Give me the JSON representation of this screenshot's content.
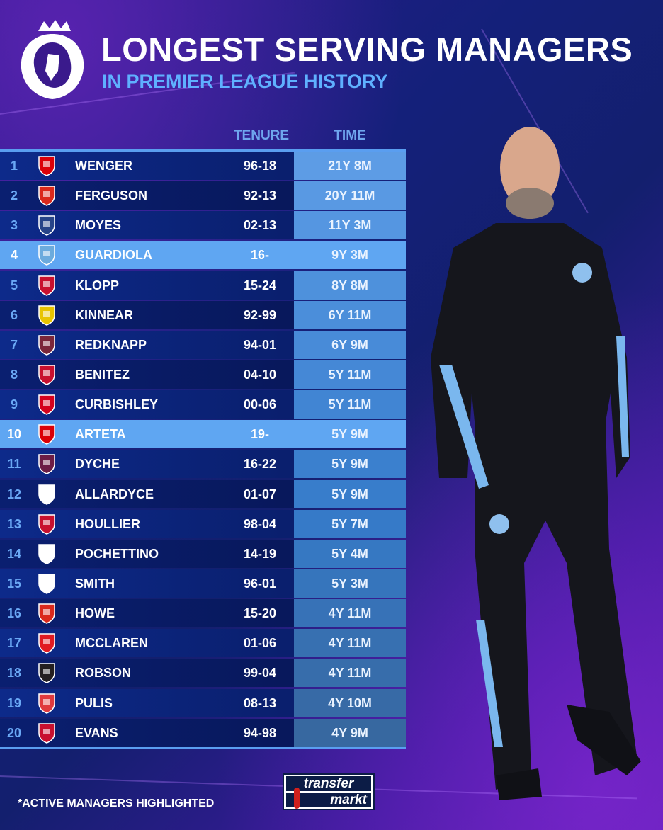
{
  "header": {
    "title": "LONGEST SERVING MANAGERS",
    "subtitle": "IN PREMIER LEAGUE HISTORY"
  },
  "columns": {
    "tenure": "TENURE",
    "time": "TIME"
  },
  "colors": {
    "highlight": "#5fa6f2",
    "row_dark": "#0d2a8a",
    "time_cell": "#5299e6",
    "subtitle": "#5fb0ff"
  },
  "rows": [
    {
      "rank": "1",
      "crest": "arsenal-crest",
      "name": "WENGER",
      "tenure": "96-18",
      "time": "21Y 8M",
      "active": false
    },
    {
      "rank": "2",
      "crest": "man-united-crest",
      "name": "FERGUSON",
      "tenure": "92-13",
      "time": "20Y 11M",
      "active": false
    },
    {
      "rank": "3",
      "crest": "everton-crest",
      "name": "MOYES",
      "tenure": "02-13",
      "time": "11Y 3M",
      "active": false
    },
    {
      "rank": "4",
      "crest": "man-city-crest",
      "name": "GUARDIOLA",
      "tenure": "16-",
      "time": "9Y 3M",
      "active": true
    },
    {
      "rank": "5",
      "crest": "liverpool-crest",
      "name": "KLOPP",
      "tenure": "15-24",
      "time": "8Y 8M",
      "active": false
    },
    {
      "rank": "6",
      "crest": "wimbledon-crest",
      "name": "KINNEAR",
      "tenure": "92-99",
      "time": "6Y 11M",
      "active": false
    },
    {
      "rank": "7",
      "crest": "west-ham-crest",
      "name": "REDKNAPP",
      "tenure": "94-01",
      "time": "6Y 9M",
      "active": false
    },
    {
      "rank": "8",
      "crest": "liverpool-crest",
      "name": "BENITEZ",
      "tenure": "04-10",
      "time": "5Y 11M",
      "active": false
    },
    {
      "rank": "9",
      "crest": "charlton-crest",
      "name": "CURBISHLEY",
      "tenure": "00-06",
      "time": "5Y 11M",
      "active": false
    },
    {
      "rank": "10",
      "crest": "arsenal-crest",
      "name": "ARTETA",
      "tenure": "19-",
      "time": "5Y 9M",
      "active": true
    },
    {
      "rank": "11",
      "crest": "burnley-crest",
      "name": "DYCHE",
      "tenure": "16-22",
      "time": "5Y 9M",
      "active": false
    },
    {
      "rank": "12",
      "crest": "bolton-crest",
      "name": "ALLARDYCE",
      "tenure": "01-07",
      "time": "5Y 9M",
      "active": false
    },
    {
      "rank": "13",
      "crest": "liverpool-crest",
      "name": "HOULLIER",
      "tenure": "98-04",
      "time": "5Y 7M",
      "active": false
    },
    {
      "rank": "14",
      "crest": "tottenham-crest",
      "name": "POCHETTINO",
      "tenure": "14-19",
      "time": "5Y 4M",
      "active": false
    },
    {
      "rank": "15",
      "crest": "derby-crest",
      "name": "SMITH",
      "tenure": "96-01",
      "time": "5Y 3M",
      "active": false
    },
    {
      "rank": "16",
      "crest": "bournemouth-crest",
      "name": "HOWE",
      "tenure": "15-20",
      "time": "4Y 11M",
      "active": false
    },
    {
      "rank": "17",
      "crest": "middlesbrough-crest",
      "name": "MCCLAREN",
      "tenure": "01-06",
      "time": "4Y 11M",
      "active": false
    },
    {
      "rank": "18",
      "crest": "newcastle-crest",
      "name": "ROBSON",
      "tenure": "99-04",
      "time": "4Y 11M",
      "active": false
    },
    {
      "rank": "19",
      "crest": "stoke-crest",
      "name": "PULIS",
      "tenure": "08-13",
      "time": "4Y 10M",
      "active": false
    },
    {
      "rank": "20",
      "crest": "liverpool-crest",
      "name": "EVANS",
      "tenure": "94-98",
      "time": "4Y 9M",
      "active": false
    }
  ],
  "footer": {
    "note": "*ACTIVE MANAGERS HIGHLIGHTED",
    "brand_line1": "transfer",
    "brand_line2": "markt"
  }
}
